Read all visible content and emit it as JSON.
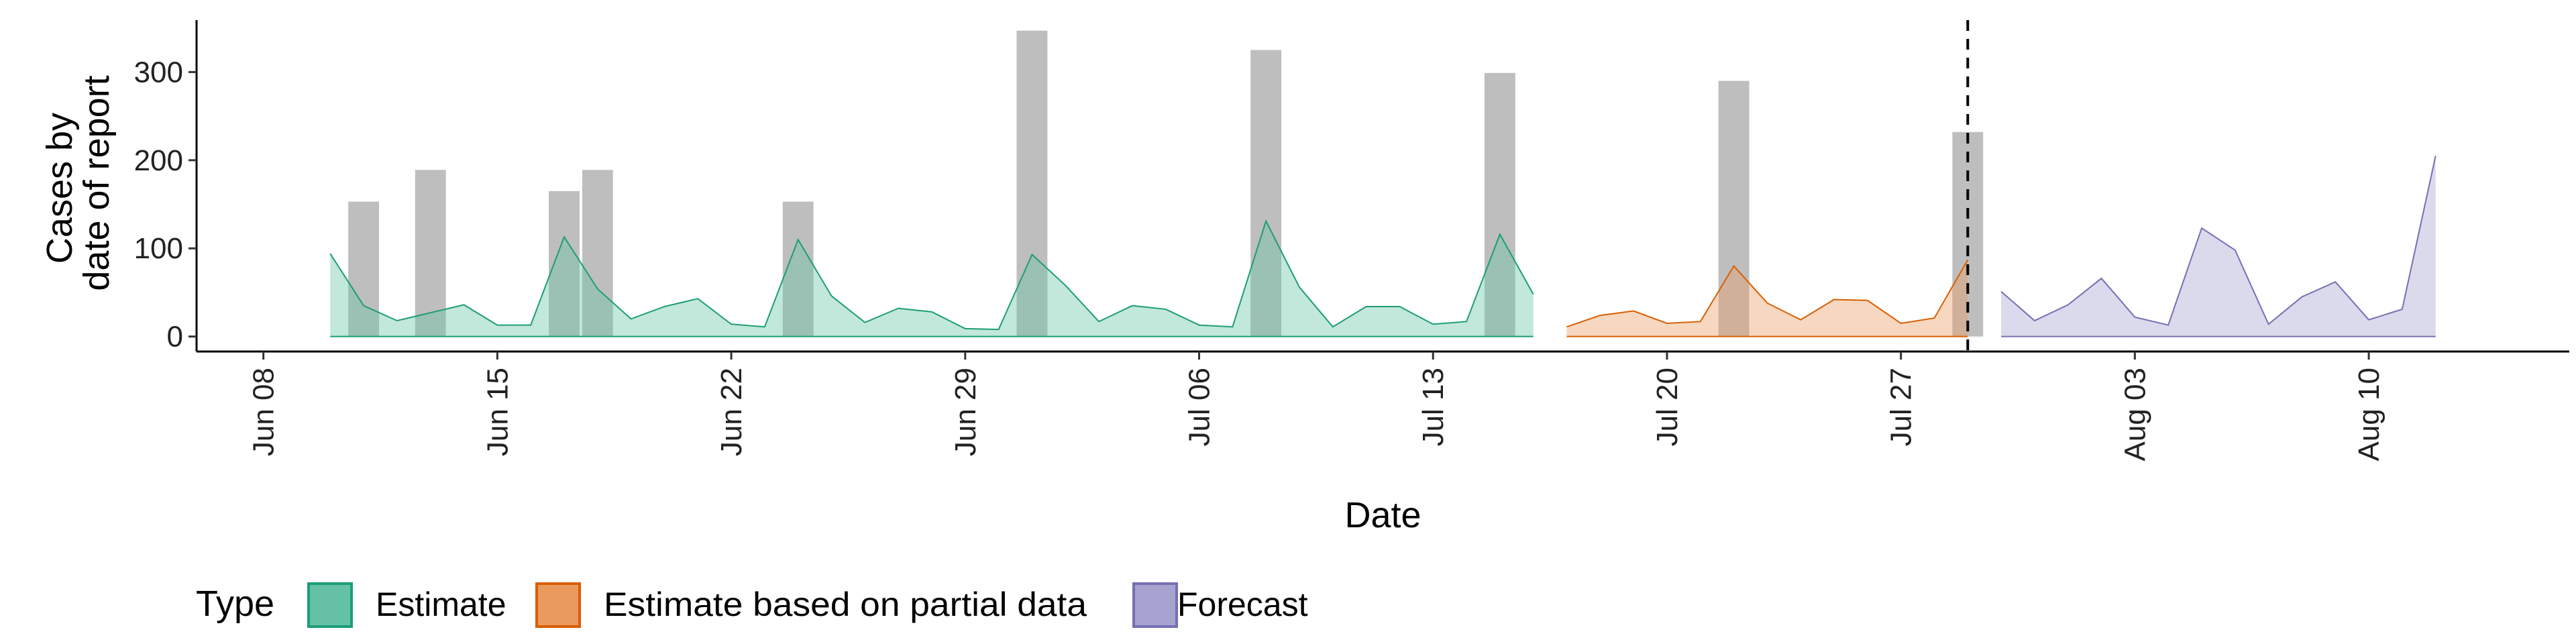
{
  "chart_data": {
    "type": "area",
    "xlabel": "Date",
    "ylabel_lines": [
      "Cases by",
      "date of report"
    ],
    "ylim": [
      -17,
      365
    ],
    "xlim": [
      "2020-06-06",
      "2020-08-16"
    ],
    "y_ticks": [
      0,
      100,
      200,
      300
    ],
    "x_ticks": [
      {
        "date": "2020-06-08",
        "label": "Jun 08"
      },
      {
        "date": "2020-06-15",
        "label": "Jun 15"
      },
      {
        "date": "2020-06-22",
        "label": "Jun 22"
      },
      {
        "date": "2020-06-29",
        "label": "Jun 29"
      },
      {
        "date": "2020-07-06",
        "label": "Jul 06"
      },
      {
        "date": "2020-07-13",
        "label": "Jul 13"
      },
      {
        "date": "2020-07-20",
        "label": "Jul 20"
      },
      {
        "date": "2020-07-27",
        "label": "Jul 27"
      },
      {
        "date": "2020-08-03",
        "label": "Aug 03"
      },
      {
        "date": "2020-08-10",
        "label": "Aug 10"
      }
    ],
    "forecast_start_line": "2020-07-29",
    "bars": {
      "color": "#bebebe",
      "points": [
        {
          "date": "2020-06-11",
          "value": 153
        },
        {
          "date": "2020-06-13",
          "value": 189
        },
        {
          "date": "2020-06-17",
          "value": 165
        },
        {
          "date": "2020-06-18",
          "value": 189
        },
        {
          "date": "2020-06-24",
          "value": 153
        },
        {
          "date": "2020-07-01",
          "value": 347
        },
        {
          "date": "2020-07-08",
          "value": 325
        },
        {
          "date": "2020-07-15",
          "value": 299
        },
        {
          "date": "2020-07-22",
          "value": 290
        },
        {
          "date": "2020-07-29",
          "value": 232
        }
      ]
    },
    "series": [
      {
        "name": "Estimate",
        "fill": "#66c2a5",
        "line": "#1b9e77",
        "points": [
          [
            "2020-06-10",
            94
          ],
          [
            "2020-06-11",
            35
          ],
          [
            "2020-06-12",
            18
          ],
          [
            "2020-06-13",
            27
          ],
          [
            "2020-06-14",
            36
          ],
          [
            "2020-06-15",
            13
          ],
          [
            "2020-06-16",
            13
          ],
          [
            "2020-06-17",
            113
          ],
          [
            "2020-06-18",
            54
          ],
          [
            "2020-06-19",
            20
          ],
          [
            "2020-06-20",
            34
          ],
          [
            "2020-06-21",
            43
          ],
          [
            "2020-06-22",
            14
          ],
          [
            "2020-06-23",
            11
          ],
          [
            "2020-06-24",
            110
          ],
          [
            "2020-06-25",
            46
          ],
          [
            "2020-06-26",
            16
          ],
          [
            "2020-06-27",
            32
          ],
          [
            "2020-06-28",
            28
          ],
          [
            "2020-06-29",
            9
          ],
          [
            "2020-06-30",
            8
          ],
          [
            "2020-07-01",
            93
          ],
          [
            "2020-07-02",
            58
          ],
          [
            "2020-07-03",
            17
          ],
          [
            "2020-07-04",
            35
          ],
          [
            "2020-07-05",
            31
          ],
          [
            "2020-07-06",
            13
          ],
          [
            "2020-07-07",
            11
          ],
          [
            "2020-07-08",
            131
          ],
          [
            "2020-07-09",
            56
          ],
          [
            "2020-07-10",
            11
          ],
          [
            "2020-07-11",
            34
          ],
          [
            "2020-07-12",
            34
          ],
          [
            "2020-07-13",
            14
          ],
          [
            "2020-07-14",
            17
          ],
          [
            "2020-07-15",
            116
          ],
          [
            "2020-07-16",
            48
          ]
        ]
      },
      {
        "name": "Estimate based on partial data",
        "fill": "#eb9a5e",
        "line": "#d95f02",
        "points": [
          [
            "2020-07-17",
            11
          ],
          [
            "2020-07-18",
            24
          ],
          [
            "2020-07-19",
            29
          ],
          [
            "2020-07-20",
            15
          ],
          [
            "2020-07-21",
            17
          ],
          [
            "2020-07-22",
            80
          ],
          [
            "2020-07-23",
            38
          ],
          [
            "2020-07-24",
            19
          ],
          [
            "2020-07-25",
            42
          ],
          [
            "2020-07-26",
            41
          ],
          [
            "2020-07-27",
            15
          ],
          [
            "2020-07-28",
            21
          ],
          [
            "2020-07-29",
            87
          ]
        ]
      },
      {
        "name": "Forecast",
        "fill": "#a6a3d0",
        "line": "#7570b3",
        "points": [
          [
            "2020-07-30",
            51
          ],
          [
            "2020-07-31",
            18
          ],
          [
            "2020-08-01",
            36
          ],
          [
            "2020-08-02",
            66
          ],
          [
            "2020-08-03",
            22
          ],
          [
            "2020-08-04",
            13
          ],
          [
            "2020-08-05",
            123
          ],
          [
            "2020-08-06",
            98
          ],
          [
            "2020-08-07",
            14
          ],
          [
            "2020-08-08",
            45
          ],
          [
            "2020-08-09",
            62
          ],
          [
            "2020-08-10",
            19
          ],
          [
            "2020-08-11",
            31
          ],
          [
            "2020-08-12",
            205
          ]
        ]
      }
    ],
    "legend": {
      "title": "Type",
      "position": "bottom",
      "entries": [
        "Estimate",
        "Estimate based on partial data",
        "Forecast"
      ]
    }
  }
}
